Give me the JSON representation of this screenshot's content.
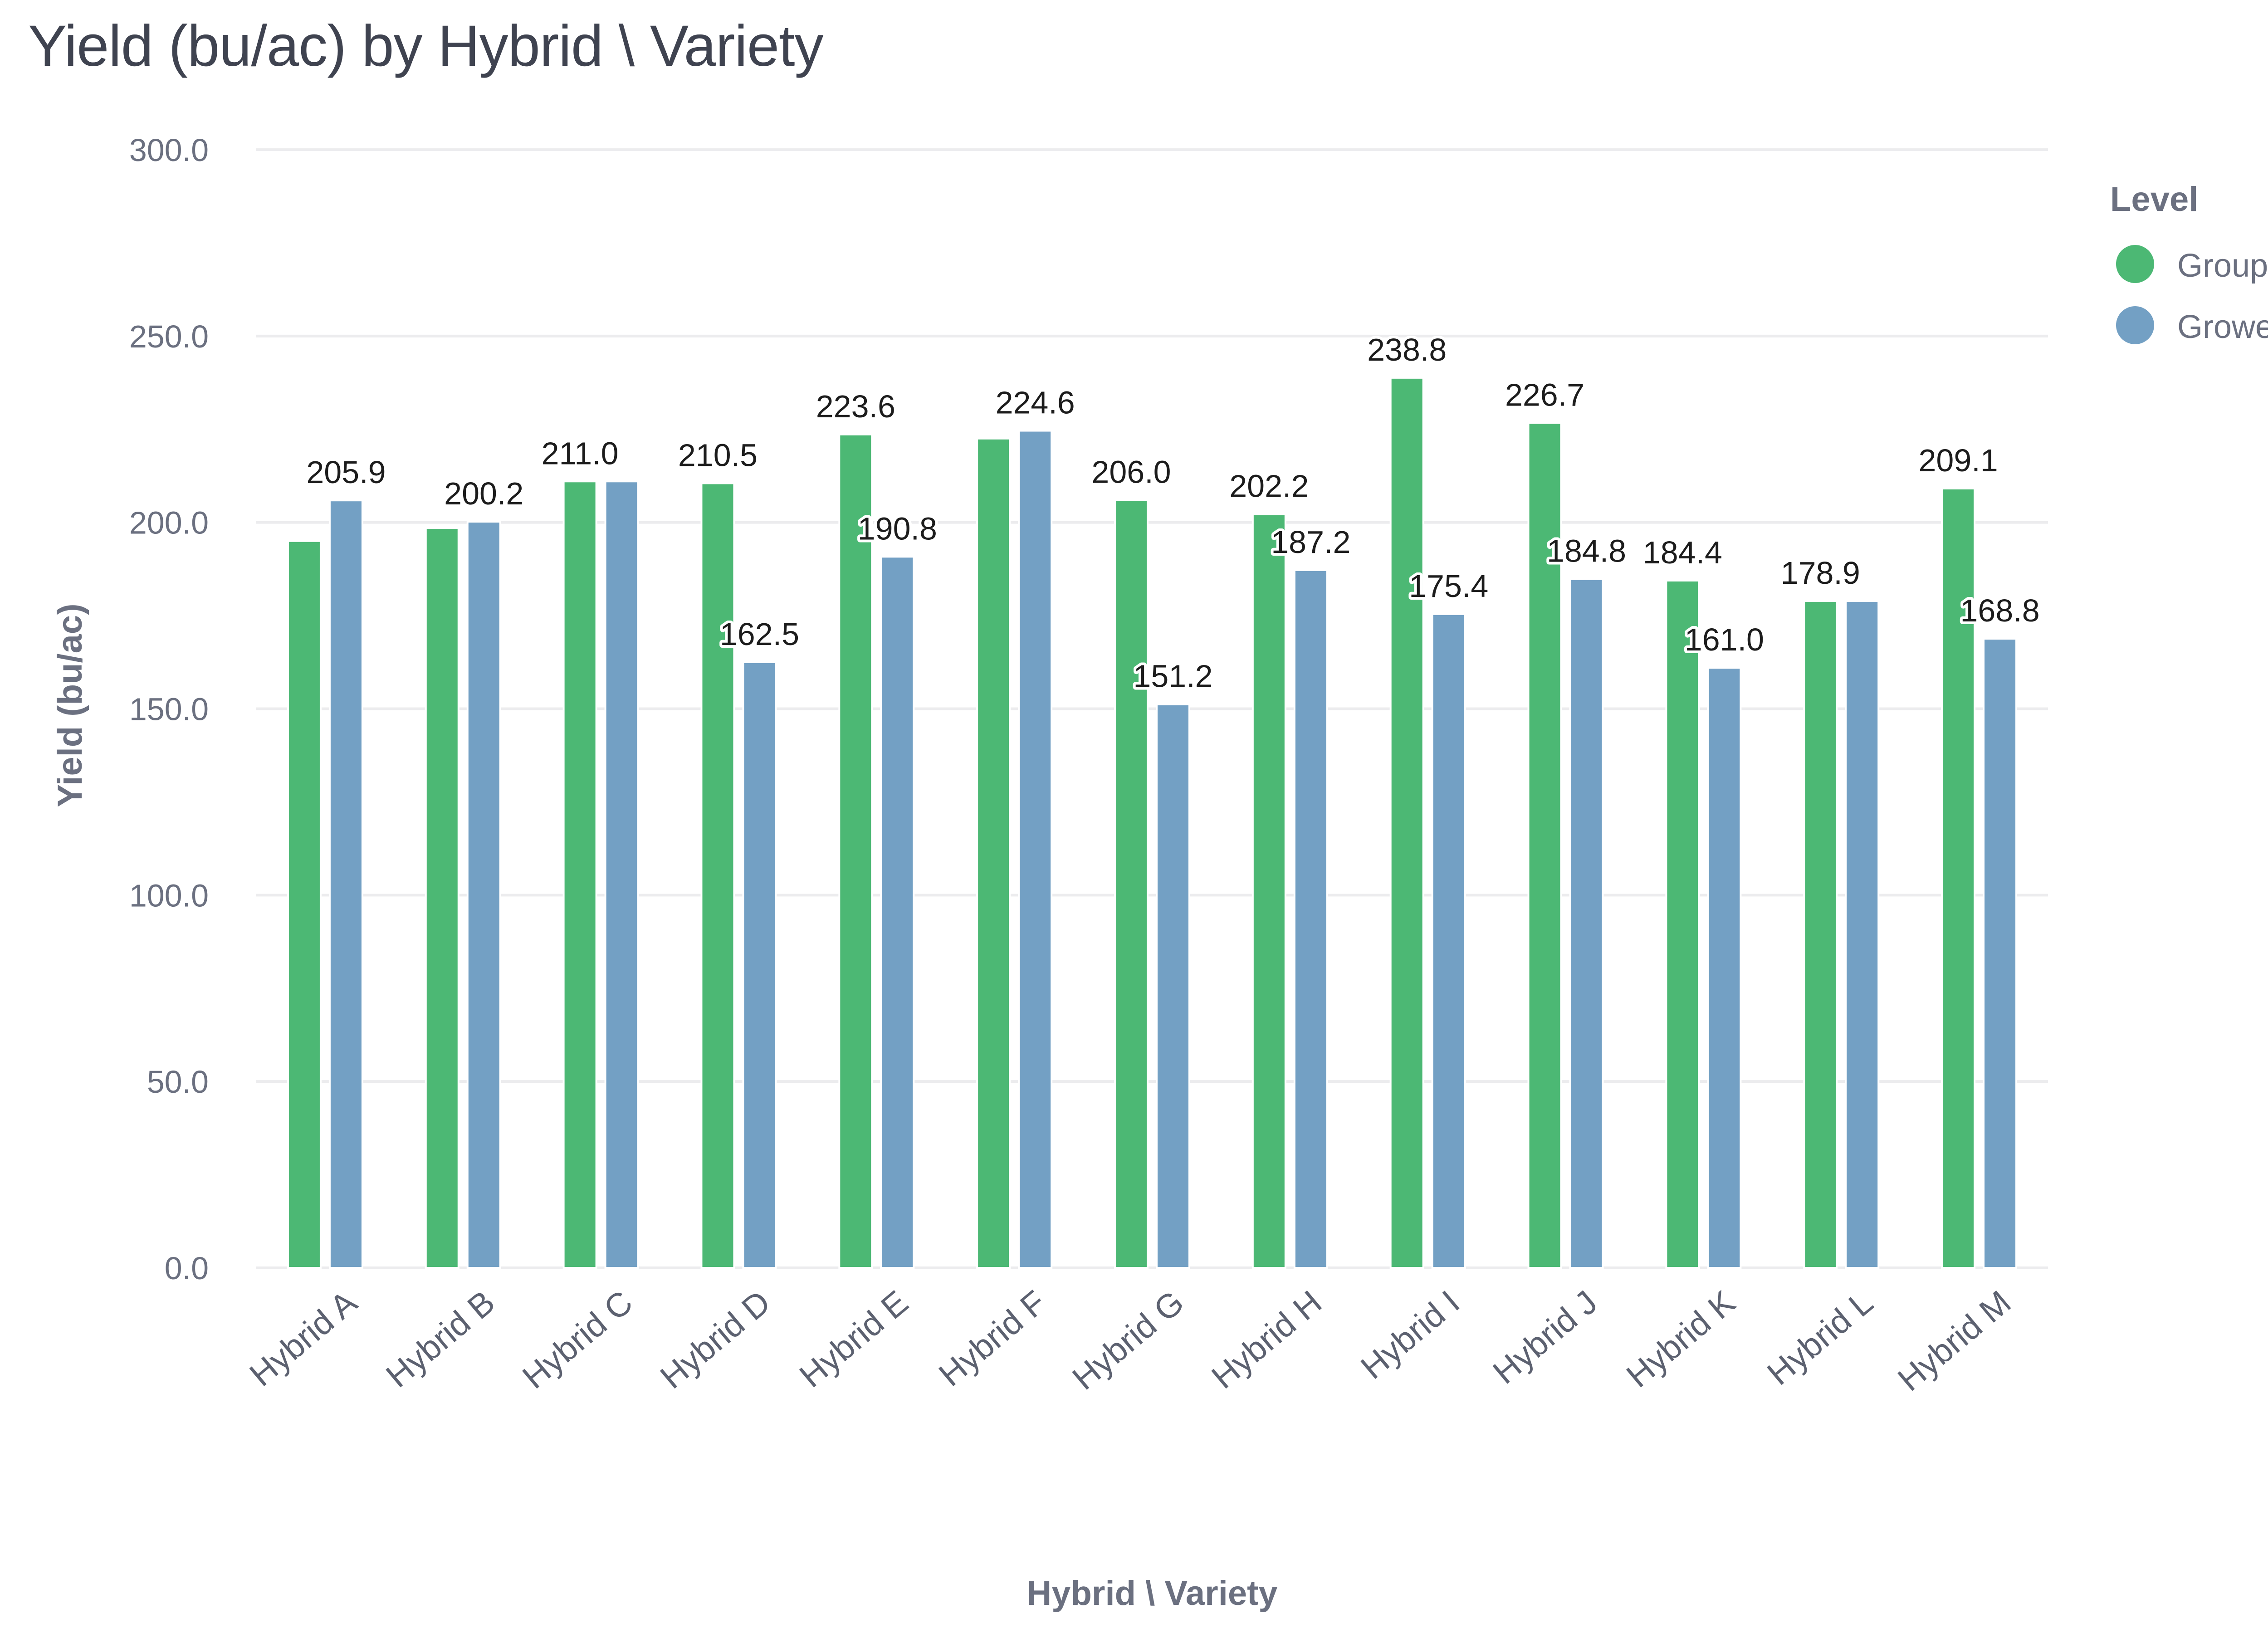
{
  "chart_data": {
    "type": "bar",
    "title": "Yield (bu/ac) by Hybrid \\ Variety",
    "xlabel": "Hybrid \\ Variety",
    "ylabel": "Yield (bu/ac)",
    "ylim": [
      0,
      300
    ],
    "yticks": [
      "0.0",
      "50.0",
      "100.0",
      "150.0",
      "200.0",
      "250.0",
      "300.0"
    ],
    "grid": "horizontal",
    "legend": {
      "title": "Level",
      "position": "right"
    },
    "categories": [
      "Hybrid A",
      "Hybrid B",
      "Hybrid C",
      "Hybrid D",
      "Hybrid E",
      "Hybrid F",
      "Hybrid G",
      "Hybrid H",
      "Hybrid I",
      "Hybrid J",
      "Hybrid K",
      "Hybrid L",
      "Hybrid M"
    ],
    "series": [
      {
        "name": "Group",
        "color": "#4cb874",
        "values": [
          195.0,
          198.5,
          211.0,
          210.5,
          223.6,
          222.5,
          206.0,
          202.2,
          238.8,
          226.7,
          184.4,
          178.9,
          209.1
        ],
        "labels": [
          "",
          "",
          "211.0",
          "210.5",
          "223.6",
          "",
          "206.0",
          "202.2",
          "238.8",
          "226.7",
          "184.4",
          "178.9",
          "209.1"
        ]
      },
      {
        "name": "Grower",
        "color": "#73a0c4",
        "values": [
          205.9,
          200.2,
          211.0,
          162.5,
          190.8,
          224.6,
          151.2,
          187.2,
          175.4,
          184.8,
          161.0,
          178.9,
          168.8
        ],
        "labels": [
          "205.9",
          "200.2",
          "",
          "162.5",
          "190.8",
          "224.6",
          "151.2",
          "187.2",
          "175.4",
          "184.8",
          "161.0",
          "",
          "168.8"
        ]
      }
    ]
  }
}
